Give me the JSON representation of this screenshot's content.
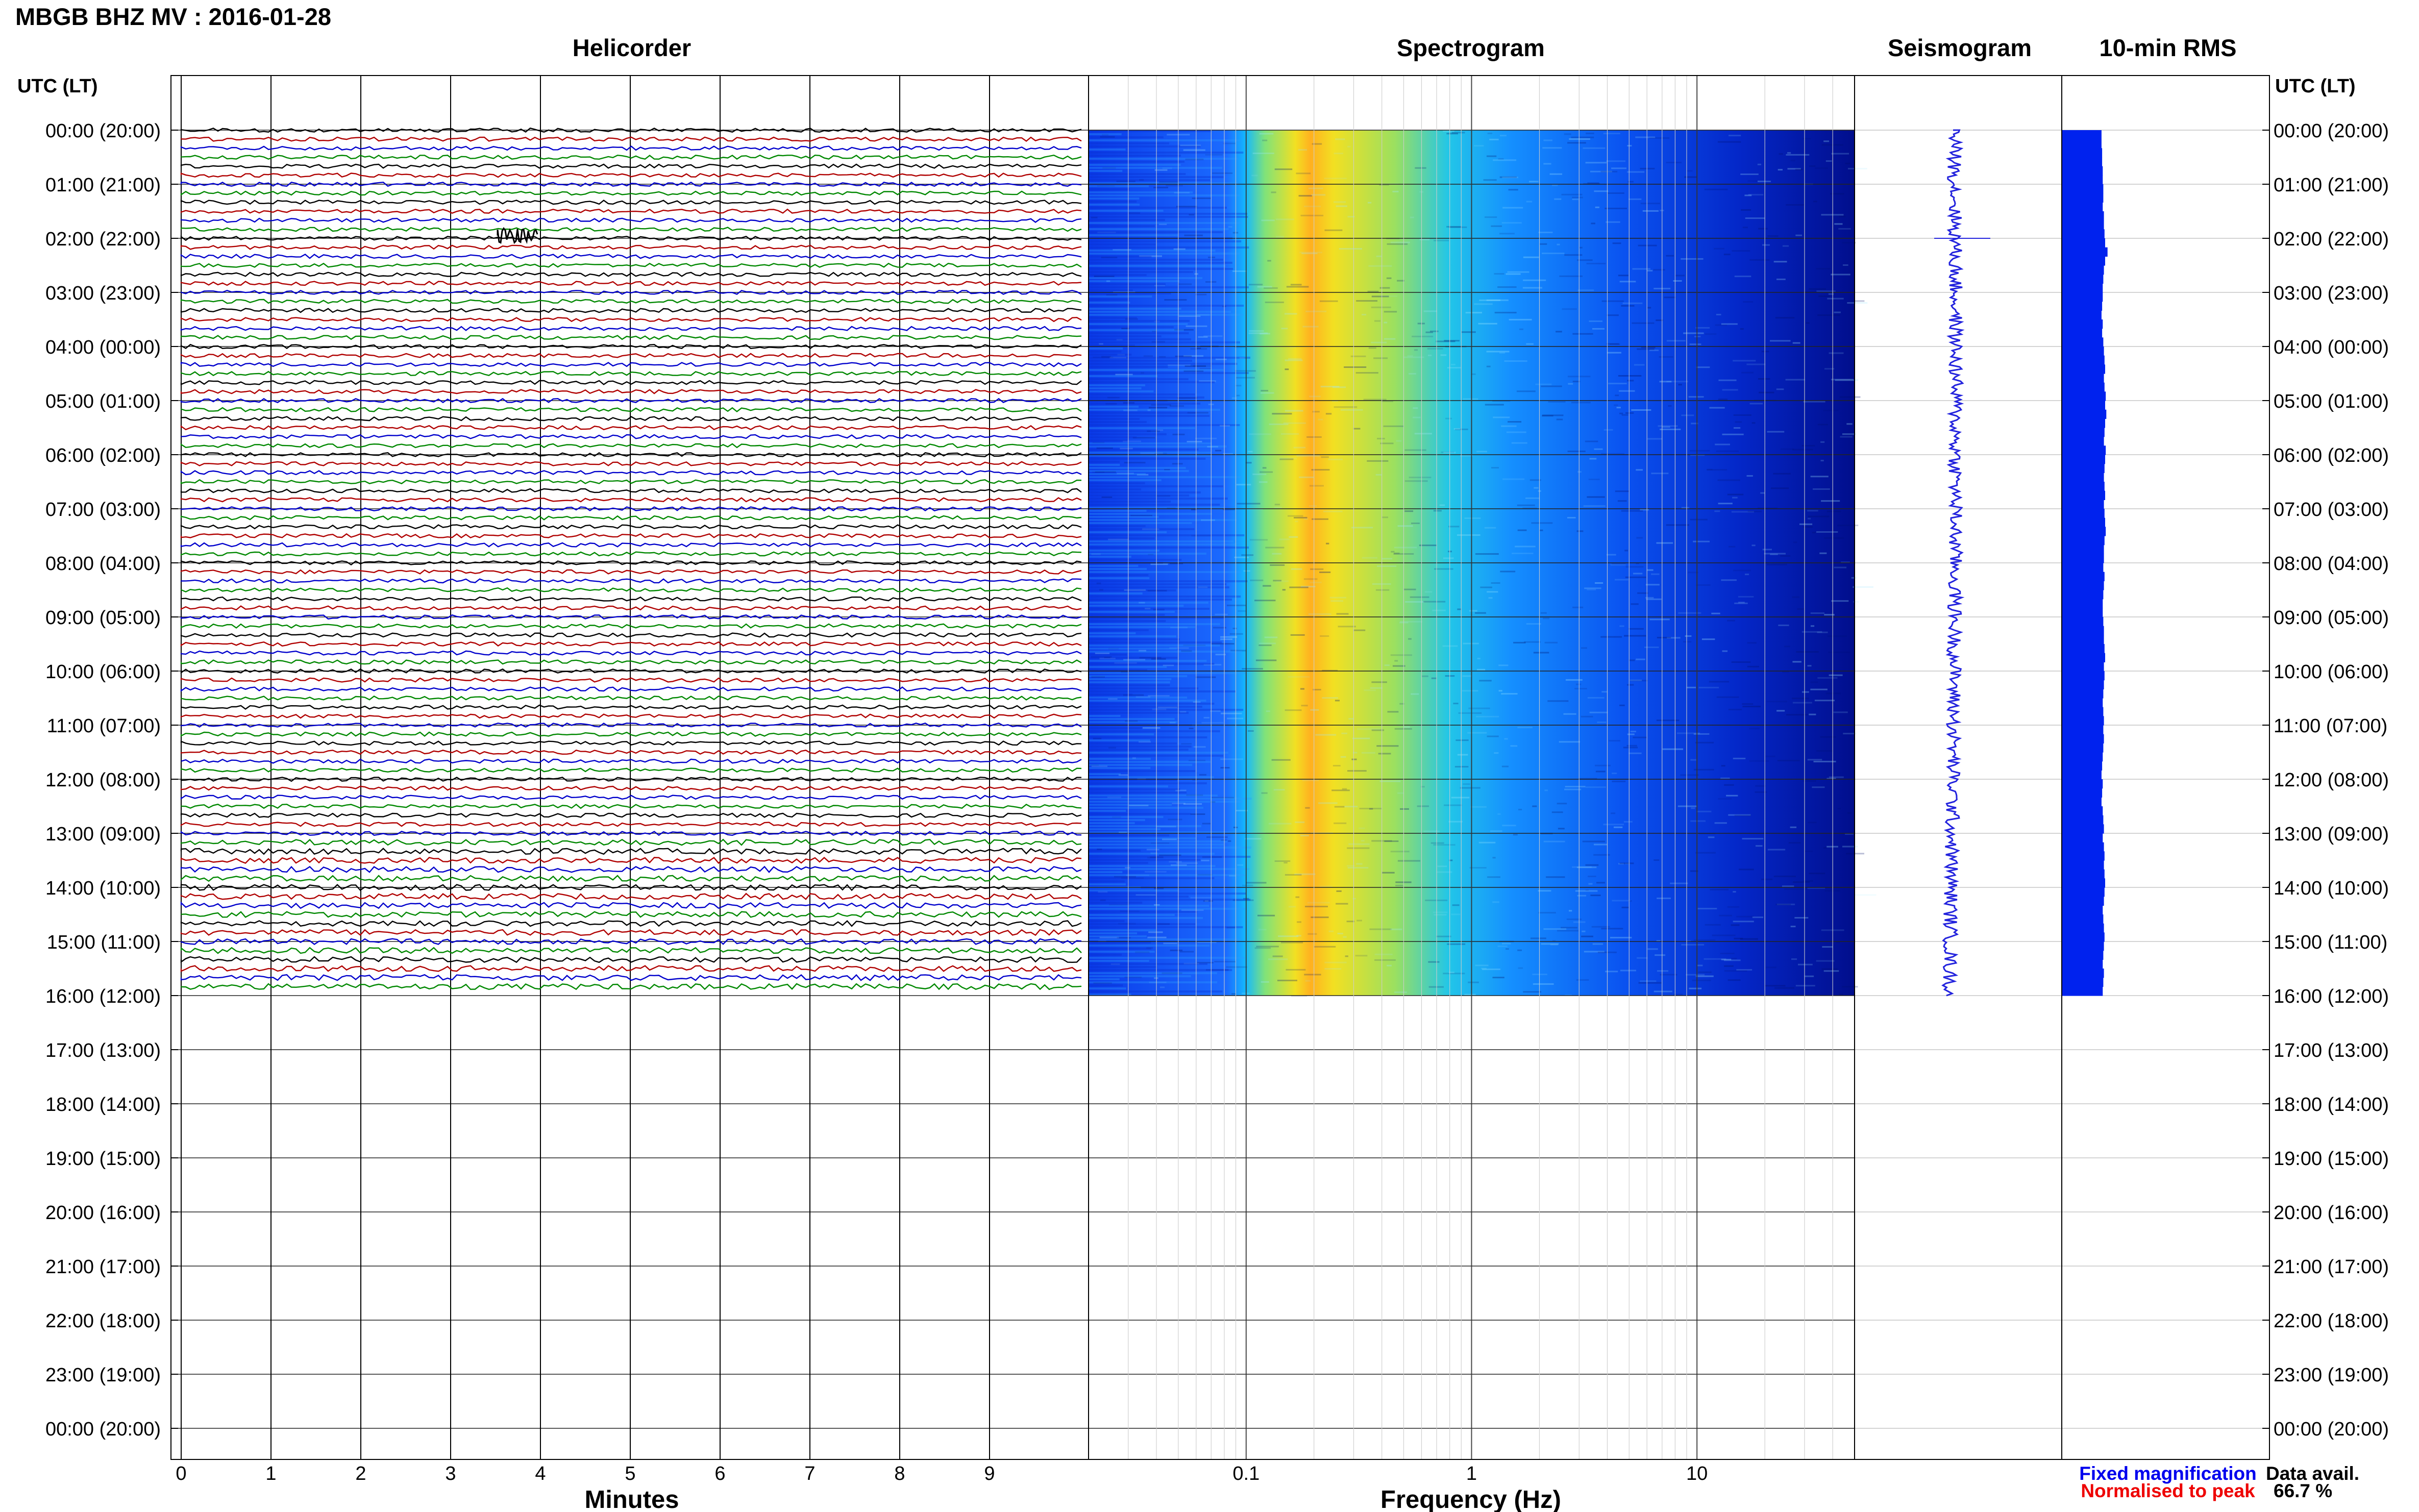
{
  "chart_data": {
    "type": "other",
    "title": "MBGB BHZ MV : 2016-01-28",
    "panel_titles": {
      "helicorder": "Helicorder",
      "spectrogram": "Spectrogram",
      "seismogram": "Seismogram",
      "rms": "10-min RMS"
    },
    "time_axis_label": "UTC (LT)",
    "hour_labels": [
      "00:00 (20:00)",
      "01:00 (21:00)",
      "02:00 (22:00)",
      "03:00 (23:00)",
      "04:00 (00:00)",
      "05:00 (01:00)",
      "06:00 (02:00)",
      "07:00 (03:00)",
      "08:00 (04:00)",
      "09:00 (05:00)",
      "10:00 (06:00)",
      "11:00 (07:00)",
      "12:00 (08:00)",
      "13:00 (09:00)",
      "14:00 (10:00)",
      "15:00 (11:00)",
      "16:00 (12:00)",
      "17:00 (13:00)",
      "18:00 (14:00)",
      "19:00 (15:00)",
      "20:00 (16:00)",
      "21:00 (17:00)",
      "22:00 (18:00)",
      "23:00 (19:00)",
      "00:00 (20:00)"
    ],
    "helicorder": {
      "xlabel": "Minutes",
      "x_ticks": [
        0,
        1,
        2,
        3,
        4,
        5,
        6,
        7,
        8,
        9
      ],
      "xlim": [
        0,
        10
      ],
      "trace_colors": [
        "#000000",
        "#b00000",
        "#0000cc",
        "#008800"
      ],
      "data_until_hours": 16,
      "events": [
        {
          "hour": 1.95,
          "minute": 3.75
        }
      ]
    },
    "spectrogram": {
      "xlabel": "Frequency (Hz)",
      "scale": "log",
      "xlim": [
        0.02,
        50
      ],
      "x_tick_labels": [
        "0.1",
        "1",
        "10"
      ],
      "x_ticks": [
        0.1,
        1,
        10
      ],
      "peak_frequency_hz": 0.25,
      "data_until_hours": 16
    },
    "seismogram": {
      "data_until_hours": 16
    },
    "rms": {
      "interval_minutes": 10,
      "relative_values": [
        0.66,
        0.66,
        0.67,
        0.67,
        0.68,
        0.68,
        0.69,
        0.69,
        0.68,
        0.7,
        0.7,
        0.71,
        0.72,
        0.76,
        0.72,
        0.7,
        0.69,
        0.68,
        0.68,
        0.67,
        0.66,
        0.68,
        0.67,
        0.69,
        0.7,
        0.71,
        0.72,
        0.7,
        0.71,
        0.73,
        0.72,
        0.74,
        0.72,
        0.71,
        0.7,
        0.73,
        0.72,
        0.71,
        0.7,
        0.71,
        0.72,
        0.7,
        0.71,
        0.72,
        0.73,
        0.71,
        0.7,
        0.7,
        0.69,
        0.71,
        0.7,
        0.69,
        0.68,
        0.68,
        0.69,
        0.7,
        0.7,
        0.71,
        0.72,
        0.7,
        0.71,
        0.7,
        0.69,
        0.68,
        0.69,
        0.7,
        0.69,
        0.7,
        0.69,
        0.68,
        0.67,
        0.66,
        0.68,
        0.67,
        0.66,
        0.68,
        0.69,
        0.7,
        0.68,
        0.7,
        0.71,
        0.7,
        0.71,
        0.72,
        0.71,
        0.7,
        0.68,
        0.69,
        0.7,
        0.71,
        0.7,
        0.69,
        0.68,
        0.7,
        0.69,
        0.68
      ]
    },
    "legend": {
      "fixed": "Fixed magnification",
      "normalised": "Normalised to peak",
      "avail_label": "Data avail.",
      "avail_value": "66.7 %"
    },
    "colors": {
      "rms": "#0022ee",
      "seismogram": "#2222dd",
      "fixed_text": "#0000ee",
      "normalised_text": "#ee0000"
    }
  }
}
